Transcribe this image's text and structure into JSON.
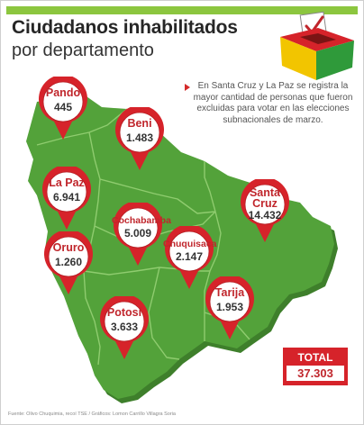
{
  "title_line1": "Ciudadanos inhabilitados",
  "title_line2": "por departamento",
  "note": "En Santa Cruz y La Paz se registra la mayor cantidad de personas que fueron excluidas para votar en las elecciones subnacionales de marzo.",
  "total": {
    "label": "TOTAL",
    "value": "37.303"
  },
  "source": "Fuente: Olivo Chuquimia, recoí TSE / Gráficos: Lomon Carrillo Villagra Soria",
  "colors": {
    "accent_green": "#8cc63f",
    "map_green": "#53a23a",
    "pin_red": "#d6232a",
    "text_red": "#c0262c"
  },
  "icons": [
    "ballot-box-icon",
    "location-pin-icon"
  ],
  "chart_data": {
    "type": "map",
    "categories": [
      "Pando",
      "Beni",
      "La Paz",
      "Cochabamba",
      "Santa Cruz",
      "Oruro",
      "Chuquisaca",
      "Potosí",
      "Tarija"
    ],
    "values": [
      445,
      1483,
      6941,
      5009,
      14432,
      1260,
      2147,
      3633,
      1953
    ],
    "labels": [
      {
        "name": "Pando",
        "value": "445"
      },
      {
        "name": "Beni",
        "value": "1.483"
      },
      {
        "name": "La Paz",
        "value": "6.941"
      },
      {
        "name": "Cochabamba",
        "value": "5.009"
      },
      {
        "name": "Santa Cruz",
        "value": "14.432"
      },
      {
        "name": "Oruro",
        "value": "1.260"
      },
      {
        "name": "Chuquisaca",
        "value": "2.147"
      },
      {
        "name": "Potosí",
        "value": "3.633"
      },
      {
        "name": "Tarija",
        "value": "1.953"
      }
    ],
    "total": 37303
  }
}
